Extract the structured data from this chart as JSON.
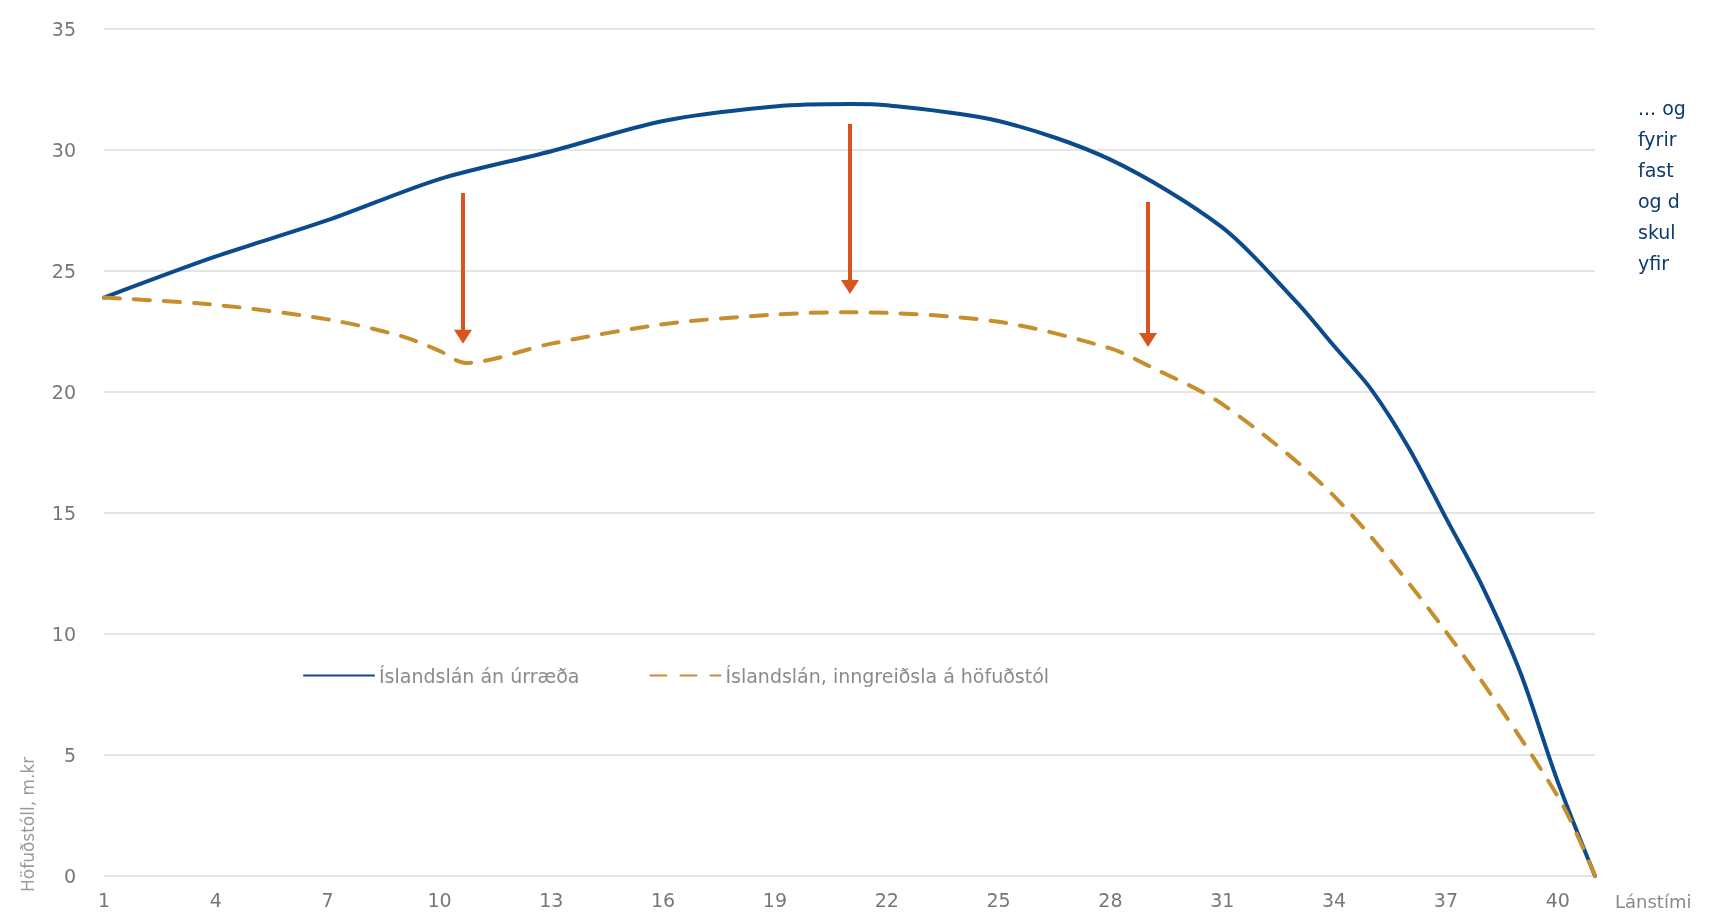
{
  "chart_data": {
    "type": "line",
    "xlabel": "Lánstími",
    "ylabel": "Höfuðstóll, m.kr",
    "annotations": [
      "... og\nfyrir\nfast\nog d\nskul\nyfir"
    ],
    "series": [
      {
        "name": "Íslandslán án úrræða",
        "color": "#0b4a8b",
        "line_style": "solid",
        "x": [
          1,
          4,
          7,
          10,
          13,
          16,
          19,
          21,
          22,
          25,
          28,
          31,
          33,
          34,
          35,
          36,
          37,
          38,
          39,
          40,
          41
        ],
        "values": [
          23.9,
          25.6,
          27.1,
          28.8,
          29.95,
          31.2,
          31.8,
          31.9,
          31.85,
          31.2,
          29.6,
          26.8,
          23.7,
          21.9,
          20.1,
          17.7,
          14.8,
          11.9,
          8.4,
          3.9,
          0
        ]
      },
      {
        "name": "Íslandslán, inngreiðsla á höfuðstól",
        "color": "#c48f2c",
        "line_style": "dashed",
        "x": [
          1,
          4,
          7,
          9,
          10,
          10.7,
          13,
          16,
          19,
          21,
          25,
          28,
          29,
          31,
          34,
          37,
          40,
          41
        ],
        "values": [
          23.9,
          23.6,
          23.0,
          22.3,
          21.7,
          21.2,
          22.0,
          22.8,
          23.2,
          23.3,
          22.9,
          21.8,
          21.1,
          19.5,
          15.7,
          10.1,
          3.3,
          0
        ]
      }
    ],
    "xlim": [
      1,
      41
    ],
    "xticks": [
      1,
      4,
      7,
      10,
      13,
      16,
      19,
      22,
      25,
      28,
      31,
      34,
      37,
      40
    ],
    "ylim": [
      0,
      35
    ],
    "yticks": [
      0,
      5,
      10,
      15,
      20,
      25,
      30,
      35
    ],
    "grid": "y",
    "legend": "bottom",
    "marker": "none"
  }
}
